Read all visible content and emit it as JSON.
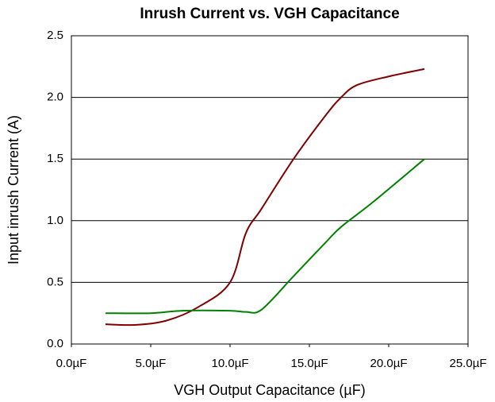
{
  "chart_data": {
    "type": "line",
    "title": "Inrush Current vs. VGH Capacitance",
    "x_label": "VGH Output Capacitance (µF)",
    "y_label": "Input inrush Current (A)",
    "xlim": [
      0,
      25
    ],
    "ylim": [
      0,
      2.5
    ],
    "xticks": [
      {
        "value": 0,
        "label": "0.0µF"
      },
      {
        "value": 5,
        "label": "5.0µF"
      },
      {
        "value": 10,
        "label": "10.0µF"
      },
      {
        "value": 15,
        "label": "15.0µF"
      },
      {
        "value": 20,
        "label": "20.0µF"
      },
      {
        "value": 25,
        "label": "25.0µF"
      }
    ],
    "yticks": [
      {
        "value": 0,
        "label": "0.0"
      },
      0.5,
      {
        "value": 1,
        "label": "1.0"
      },
      1.5,
      {
        "value": 2,
        "label": "2.0"
      },
      2.5
    ],
    "grid": true,
    "smooth": true,
    "series": [
      {
        "color": "#800000",
        "x": [
          2.15,
          4,
          6,
          8,
          10,
          11,
          12,
          14,
          16,
          17,
          18,
          20,
          22.25
        ],
        "values": [
          0.16,
          0.155,
          0.19,
          0.3,
          0.5,
          0.9,
          1.1,
          1.5,
          1.85,
          2.0,
          2.1,
          2.17,
          2.23
        ]
      },
      {
        "color": "#008000",
        "x": [
          2.15,
          5,
          7,
          10,
          11,
          12,
          14,
          16,
          17,
          19,
          22.25
        ],
        "values": [
          0.25,
          0.25,
          0.27,
          0.27,
          0.26,
          0.28,
          0.55,
          0.82,
          0.95,
          1.15,
          1.5
        ]
      }
    ]
  }
}
